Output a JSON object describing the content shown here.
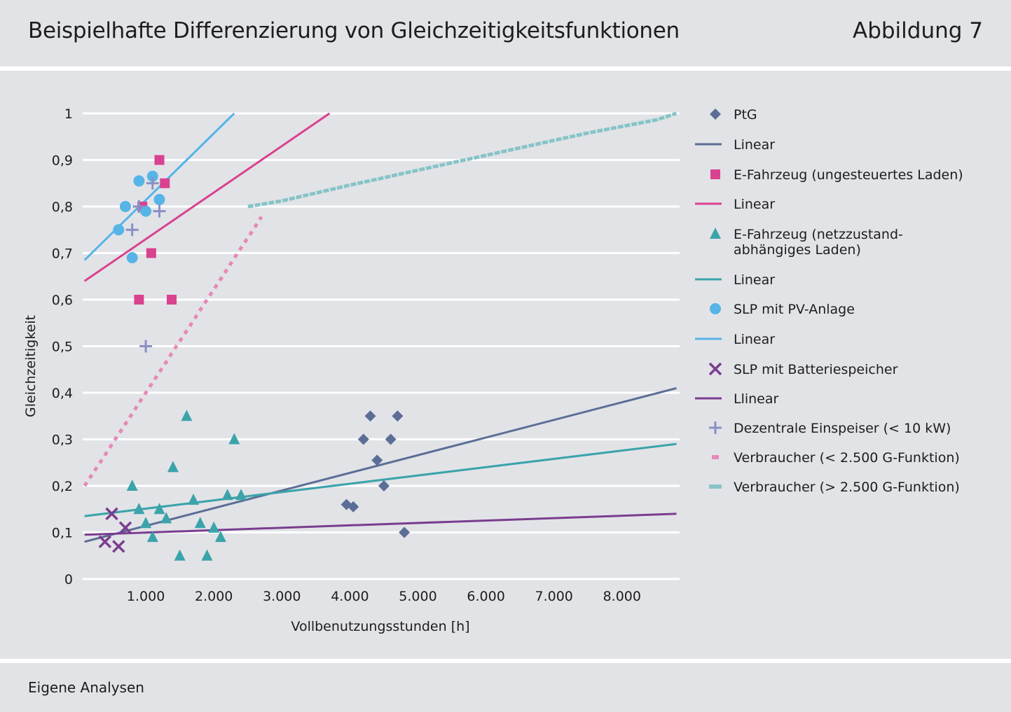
{
  "header": {
    "title": "Beispielhafte Differenzierung von Gleichzeitigkeitsfunktionen",
    "figure_label": "Abbildung 7"
  },
  "footer": {
    "source": "Eigene Analysen"
  },
  "chart_data": {
    "type": "scatter",
    "title": "Beispielhafte Differenzierung von Gleichzeitigkeitsfunktionen",
    "xlabel": "Vollbenutzungsstunden [h]",
    "ylabel": "Gleichzeitigkeit",
    "xlim": [
      0,
      8800
    ],
    "ylim": [
      0,
      1
    ],
    "xticks": [
      1000,
      2000,
      3000,
      4000,
      5000,
      6000,
      7000,
      8000
    ],
    "xtick_labels": [
      "1.000",
      "2.000",
      "3.000",
      "4.000",
      "5.000",
      "6.000",
      "7.000",
      "8.000"
    ],
    "yticks": [
      0,
      0.1,
      0.2,
      0.3,
      0.4,
      0.5,
      0.6,
      0.7,
      0.8,
      0.9,
      1
    ],
    "ytick_labels": [
      "0",
      "0,1",
      "0,2",
      "0,3",
      "0,4",
      "0,5",
      "0,6",
      "0,7",
      "0,8",
      "0,9",
      "1"
    ],
    "grid": true,
    "legend_position": "right",
    "colors": {
      "ptg": "#5b6e96",
      "ev_uncontrolled": "#d9428f",
      "ev_grid": "#3aa4aa",
      "pv": "#56b4e6",
      "battery": "#7a3d8f",
      "decentral": "#8a8fc4",
      "consumer_low": "#e689b8",
      "consumer_high": "#86c4c6"
    },
    "series": [
      {
        "key": "ptg",
        "name": "PtG",
        "kind": "scatter",
        "marker": "diamond",
        "color": "#5b6e96",
        "points": [
          [
            3950,
            0.16
          ],
          [
            4050,
            0.155
          ],
          [
            4200,
            0.3
          ],
          [
            4300,
            0.35
          ],
          [
            4400,
            0.255
          ],
          [
            4500,
            0.2
          ],
          [
            4600,
            0.3
          ],
          [
            4700,
            0.35
          ],
          [
            4800,
            0.1
          ]
        ]
      },
      {
        "key": "ptg_linear",
        "name": "Linear",
        "kind": "line",
        "color": "#5b6e96",
        "points": [
          [
            100,
            0.08
          ],
          [
            8800,
            0.41
          ]
        ]
      },
      {
        "key": "ev_uncontrolled",
        "name": "E-Fahrzeug (ungesteuertes Laden)",
        "kind": "scatter",
        "marker": "square",
        "color": "#d9428f",
        "points": [
          [
            900,
            0.6
          ],
          [
            950,
            0.8
          ],
          [
            1080,
            0.7
          ],
          [
            1200,
            0.9
          ],
          [
            1280,
            0.85
          ],
          [
            1380,
            0.6
          ]
        ]
      },
      {
        "key": "ev_uncontrolled_linear",
        "name": "Linear",
        "kind": "line",
        "color": "#d9428f",
        "points": [
          [
            100,
            0.64
          ],
          [
            3700,
            1.0
          ]
        ]
      },
      {
        "key": "ev_grid",
        "name": "E-Fahrzeug (netzzustand-abhängiges Laden)",
        "kind": "scatter",
        "marker": "triangle",
        "color": "#3aa4aa",
        "points": [
          [
            800,
            0.2
          ],
          [
            900,
            0.15
          ],
          [
            1000,
            0.12
          ],
          [
            1100,
            0.09
          ],
          [
            1200,
            0.15
          ],
          [
            1300,
            0.13
          ],
          [
            1400,
            0.24
          ],
          [
            1500,
            0.05
          ],
          [
            1600,
            0.35
          ],
          [
            1700,
            0.17
          ],
          [
            1800,
            0.12
          ],
          [
            1900,
            0.05
          ],
          [
            2000,
            0.11
          ],
          [
            2100,
            0.09
          ],
          [
            2200,
            0.18
          ],
          [
            2300,
            0.3
          ],
          [
            2400,
            0.18
          ]
        ]
      },
      {
        "key": "ev_grid_linear",
        "name": "Linear",
        "kind": "line",
        "color": "#3aa4aa",
        "points": [
          [
            100,
            0.135
          ],
          [
            8800,
            0.29
          ]
        ]
      },
      {
        "key": "pv",
        "name": "SLP mit PV-Anlage",
        "kind": "scatter",
        "marker": "circle",
        "color": "#56b4e6",
        "points": [
          [
            600,
            0.75
          ],
          [
            700,
            0.8
          ],
          [
            800,
            0.69
          ],
          [
            900,
            0.855
          ],
          [
            1000,
            0.79
          ],
          [
            1100,
            0.865
          ],
          [
            1200,
            0.815
          ]
        ]
      },
      {
        "key": "pv_linear",
        "name": "Linear",
        "kind": "line",
        "color": "#56b4e6",
        "points": [
          [
            100,
            0.685
          ],
          [
            2300,
            1.0
          ]
        ]
      },
      {
        "key": "battery",
        "name": "SLP mit Batteriespeicher",
        "kind": "scatter",
        "marker": "x",
        "color": "#7a3d8f",
        "points": [
          [
            400,
            0.08
          ],
          [
            500,
            0.14
          ],
          [
            600,
            0.07
          ],
          [
            700,
            0.11
          ]
        ]
      },
      {
        "key": "battery_linear",
        "name": "Llinear",
        "kind": "line",
        "color": "#7a3d8f",
        "points": [
          [
            100,
            0.095
          ],
          [
            8800,
            0.14
          ]
        ]
      },
      {
        "key": "decentral",
        "name": "Dezentrale Einspeiser (< 10 kW)",
        "kind": "scatter",
        "marker": "plus",
        "color": "#8a8fc4",
        "points": [
          [
            800,
            0.75
          ],
          [
            900,
            0.8
          ],
          [
            1000,
            0.5
          ],
          [
            1100,
            0.85
          ],
          [
            1200,
            0.79
          ]
        ]
      },
      {
        "key": "consumer_low",
        "name": "Verbraucher (< 2.500 G-Funktion)",
        "kind": "dotted",
        "color": "#e689b8",
        "points": [
          [
            100,
            0.2
          ],
          [
            200,
            0.222
          ],
          [
            300,
            0.244
          ],
          [
            400,
            0.266
          ],
          [
            500,
            0.289
          ],
          [
            600,
            0.311
          ],
          [
            700,
            0.333
          ],
          [
            800,
            0.355
          ],
          [
            900,
            0.378
          ],
          [
            1000,
            0.4
          ],
          [
            1100,
            0.422
          ],
          [
            1200,
            0.444
          ],
          [
            1300,
            0.466
          ],
          [
            1400,
            0.489
          ],
          [
            1500,
            0.511
          ],
          [
            1600,
            0.533
          ],
          [
            1700,
            0.555
          ],
          [
            1800,
            0.578
          ],
          [
            1900,
            0.6
          ],
          [
            2000,
            0.622
          ],
          [
            2100,
            0.644
          ],
          [
            2200,
            0.666
          ],
          [
            2300,
            0.689
          ],
          [
            2400,
            0.711
          ],
          [
            2500,
            0.733
          ],
          [
            2600,
            0.755
          ],
          [
            2700,
            0.778
          ]
        ]
      },
      {
        "key": "consumer_high",
        "name": "Verbraucher (> 2.500 G-Funktion)",
        "kind": "dashed",
        "color": "#86c4c6",
        "points": [
          [
            2500,
            0.8
          ],
          [
            3000,
            0.812
          ],
          [
            3500,
            0.829
          ],
          [
            4000,
            0.846
          ],
          [
            4500,
            0.862
          ],
          [
            5000,
            0.878
          ],
          [
            5500,
            0.894
          ],
          [
            6000,
            0.91
          ],
          [
            6500,
            0.926
          ],
          [
            7000,
            0.942
          ],
          [
            7500,
            0.958
          ],
          [
            8000,
            0.972
          ],
          [
            8500,
            0.986
          ],
          [
            8800,
            1.0
          ]
        ]
      }
    ]
  }
}
